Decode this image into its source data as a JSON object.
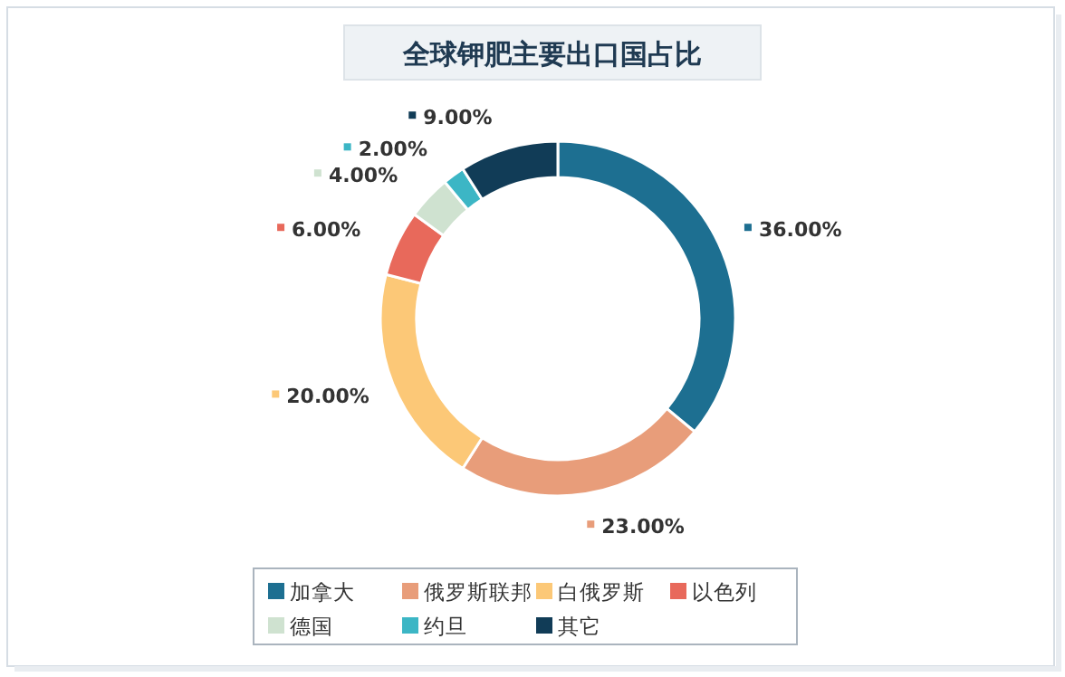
{
  "chart_data": {
    "type": "donut",
    "title": "全球钾肥主要出口国占比",
    "categories": [
      "加拿大",
      "俄罗斯联邦",
      "白俄罗斯",
      "以色列",
      "德国",
      "约旦",
      "其它"
    ],
    "values": [
      36,
      23,
      20,
      6,
      4,
      2,
      9
    ],
    "colors": [
      "#1d6f91",
      "#e89d7a",
      "#fcc877",
      "#e8695b",
      "#cfe2d0",
      "#3cb6c5",
      "#113c57"
    ],
    "value_labels": [
      "36.00%",
      "23.00%",
      "20.00%",
      "6.00%",
      "4.00%",
      "2.00%",
      "9.00%"
    ],
    "legend": "bottom"
  }
}
